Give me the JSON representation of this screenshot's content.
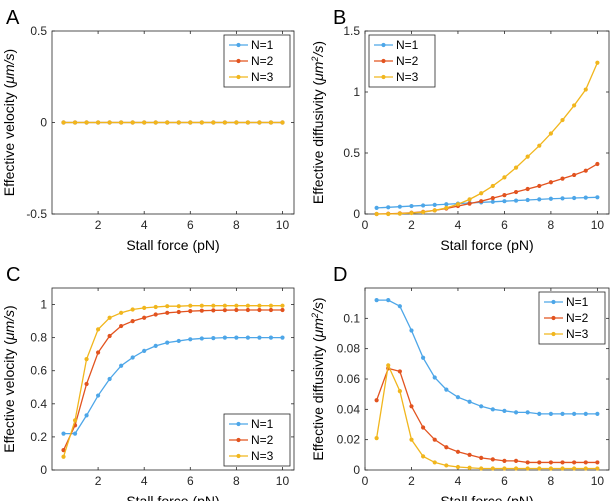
{
  "colors": {
    "N=1": "#4DA6E8",
    "N=2": "#E2531F",
    "N=3": "#F1B61D"
  },
  "chart_data": [
    {
      "panel": "A",
      "type": "line",
      "xlabel": "Stall force (pN)",
      "ylabel": "Effective velocity",
      "ylabel_unit": {
        "base": "μm/s",
        "sup": ""
      },
      "xlim": [
        0,
        10.5
      ],
      "ylim": [
        -0.5,
        0.5
      ],
      "xticks": [
        2,
        4,
        6,
        8,
        10
      ],
      "yticks": [
        -0.5,
        0,
        0.5
      ],
      "ytick_labels": [
        "-0.5",
        "0",
        "0.5"
      ],
      "legend_position": "top-right",
      "x": [
        0.5,
        1,
        1.5,
        2,
        2.5,
        3,
        3.5,
        4,
        4.5,
        5,
        5.5,
        6,
        6.5,
        7,
        7.5,
        8,
        8.5,
        9,
        9.5,
        10
      ],
      "series": [
        {
          "name": "N=1",
          "values": [
            0,
            0,
            0,
            0,
            0,
            0,
            0,
            0,
            0,
            0,
            0,
            0,
            0,
            0,
            0,
            0,
            0,
            0,
            0,
            0
          ]
        },
        {
          "name": "N=2",
          "values": [
            0,
            0,
            0,
            0,
            0,
            0,
            0,
            0,
            0,
            0,
            0,
            0,
            0,
            0,
            0,
            0,
            0,
            0,
            0,
            0
          ]
        },
        {
          "name": "N=3",
          "values": [
            0,
            0,
            0,
            0,
            0,
            0,
            0,
            0,
            0,
            0,
            0,
            0,
            0,
            0,
            0,
            0,
            0,
            0,
            0,
            0
          ]
        }
      ]
    },
    {
      "panel": "B",
      "type": "line",
      "xlabel": "Stall force (pN)",
      "ylabel": "Effective diffusivity",
      "ylabel_unit": {
        "base": "μm",
        "sup": "2",
        "tail": "/s"
      },
      "xlim": [
        0,
        10.5
      ],
      "ylim": [
        0,
        1.5
      ],
      "xticks": [
        0,
        2,
        4,
        6,
        8,
        10
      ],
      "yticks": [
        0,
        0.5,
        1,
        1.5
      ],
      "ytick_labels": [
        "0",
        "0.5",
        "1",
        "1.5"
      ],
      "legend_position": "top-left",
      "x": [
        0.5,
        1,
        1.5,
        2,
        2.5,
        3,
        3.5,
        4,
        4.5,
        5,
        5.5,
        6,
        6.5,
        7,
        7.5,
        8,
        8.5,
        9,
        9.5,
        10
      ],
      "series": [
        {
          "name": "N=1",
          "values": [
            0.05,
            0.055,
            0.06,
            0.065,
            0.07,
            0.075,
            0.08,
            0.085,
            0.09,
            0.095,
            0.1,
            0.105,
            0.11,
            0.115,
            0.12,
            0.125,
            0.128,
            0.131,
            0.134,
            0.137
          ]
        },
        {
          "name": "N=2",
          "values": [
            0,
            0.002,
            0.005,
            0.01,
            0.018,
            0.03,
            0.045,
            0.065,
            0.085,
            0.105,
            0.13,
            0.155,
            0.18,
            0.205,
            0.23,
            0.26,
            0.29,
            0.32,
            0.355,
            0.41
          ]
        },
        {
          "name": "N=3",
          "values": [
            0,
            0,
            0.003,
            0.008,
            0.015,
            0.03,
            0.05,
            0.08,
            0.12,
            0.17,
            0.23,
            0.3,
            0.38,
            0.47,
            0.56,
            0.66,
            0.77,
            0.89,
            1.02,
            1.24
          ]
        }
      ]
    },
    {
      "panel": "C",
      "type": "line",
      "xlabel": "Stall force (pN)",
      "ylabel": "Effective velocity",
      "ylabel_unit": {
        "base": "μm/s",
        "sup": ""
      },
      "xlim": [
        0,
        10.5
      ],
      "ylim": [
        0,
        1.1
      ],
      "xticks": [
        2,
        4,
        6,
        8,
        10
      ],
      "yticks": [
        0,
        0.2,
        0.4,
        0.6,
        0.8,
        1
      ],
      "ytick_labels": [
        "0",
        "0.2",
        "0.4",
        "0.6",
        "0.8",
        "1"
      ],
      "legend_position": "bottom-right",
      "x": [
        0.5,
        1,
        1.5,
        2,
        2.5,
        3,
        3.5,
        4,
        4.5,
        5,
        5.5,
        6,
        6.5,
        7,
        7.5,
        8,
        8.5,
        9,
        9.5,
        10
      ],
      "series": [
        {
          "name": "N=1",
          "values": [
            0.22,
            0.22,
            0.33,
            0.45,
            0.55,
            0.63,
            0.68,
            0.72,
            0.75,
            0.77,
            0.78,
            0.79,
            0.795,
            0.797,
            0.8,
            0.8,
            0.8,
            0.8,
            0.8,
            0.8
          ]
        },
        {
          "name": "N=2",
          "values": [
            0.12,
            0.27,
            0.52,
            0.71,
            0.81,
            0.87,
            0.9,
            0.92,
            0.94,
            0.95,
            0.955,
            0.96,
            0.963,
            0.965,
            0.966,
            0.967,
            0.967,
            0.967,
            0.967,
            0.967
          ]
        },
        {
          "name": "N=3",
          "values": [
            0.08,
            0.3,
            0.67,
            0.85,
            0.92,
            0.95,
            0.97,
            0.98,
            0.985,
            0.99,
            0.99,
            0.993,
            0.993,
            0.993,
            0.993,
            0.993,
            0.993,
            0.993,
            0.993,
            0.993
          ]
        }
      ]
    },
    {
      "panel": "D",
      "type": "line",
      "xlabel": "Stall force (pN)",
      "ylabel": "Effective diffusivity",
      "ylabel_unit": {
        "base": "μm",
        "sup": "2",
        "tail": "/s"
      },
      "xlim": [
        0,
        10.5
      ],
      "ylim": [
        0,
        0.12
      ],
      "xticks": [
        0,
        2,
        4,
        6,
        8,
        10
      ],
      "yticks": [
        0,
        0.02,
        0.04,
        0.06,
        0.08,
        0.1
      ],
      "ytick_labels": [
        "0",
        "0.02",
        "0.04",
        "0.06",
        "0.08",
        "0.1"
      ],
      "legend_position": "top-right",
      "x": [
        0.5,
        1,
        1.5,
        2,
        2.5,
        3,
        3.5,
        4,
        4.5,
        5,
        5.5,
        6,
        6.5,
        7,
        7.5,
        8,
        8.5,
        9,
        9.5,
        10
      ],
      "series": [
        {
          "name": "N=1",
          "values": [
            0.112,
            0.112,
            0.108,
            0.092,
            0.074,
            0.061,
            0.053,
            0.048,
            0.045,
            0.042,
            0.04,
            0.039,
            0.038,
            0.038,
            0.037,
            0.037,
            0.037,
            0.037,
            0.037,
            0.037
          ]
        },
        {
          "name": "N=2",
          "values": [
            0.046,
            0.067,
            0.065,
            0.042,
            0.028,
            0.02,
            0.015,
            0.012,
            0.01,
            0.008,
            0.007,
            0.006,
            0.006,
            0.005,
            0.005,
            0.005,
            0.005,
            0.005,
            0.005,
            0.005
          ]
        },
        {
          "name": "N=3",
          "values": [
            0.021,
            0.069,
            0.052,
            0.02,
            0.009,
            0.005,
            0.003,
            0.002,
            0.0015,
            0.001,
            0.001,
            0.001,
            0.001,
            0.001,
            0.001,
            0.001,
            0.001,
            0.001,
            0.001,
            0.001
          ]
        }
      ]
    }
  ]
}
